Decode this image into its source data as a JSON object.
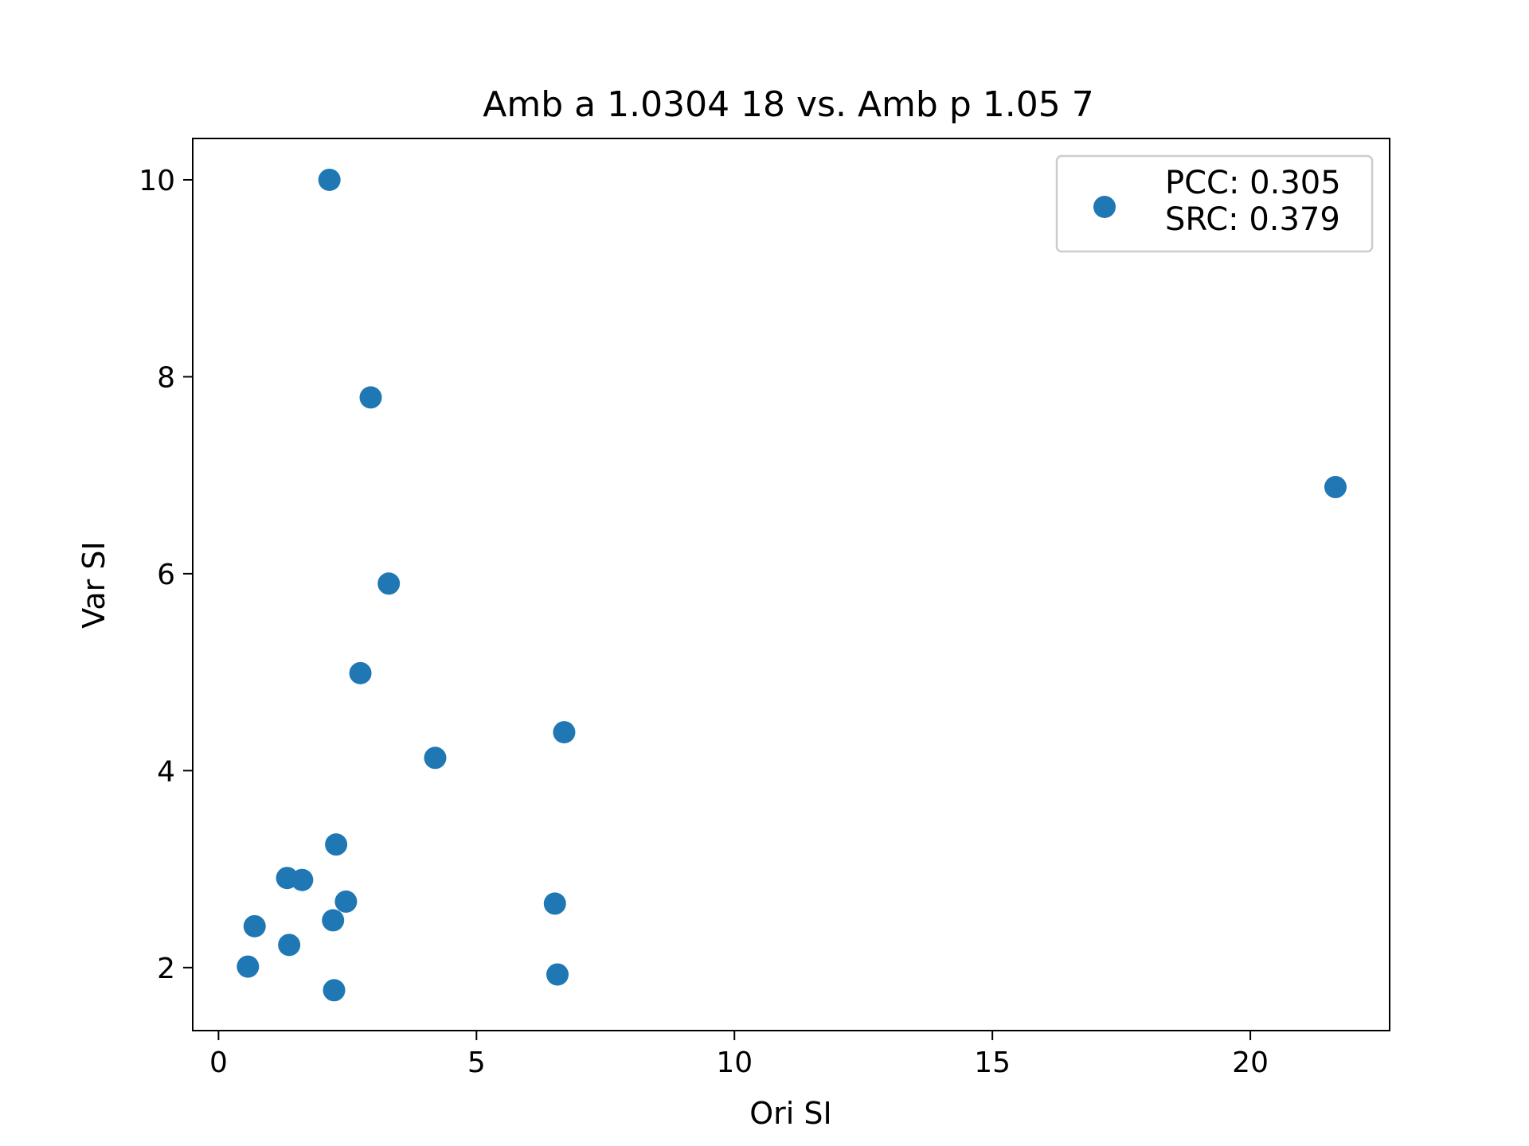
{
  "chart_data": {
    "type": "scatter",
    "title": "Amb a 1.0304 18 vs. Amb p 1.05 7",
    "xlabel": "Ori SI",
    "ylabel": "Var SI",
    "xlim": [
      -0.5,
      22.7
    ],
    "ylim": [
      1.36,
      10.42
    ],
    "xticks": [
      0,
      5,
      10,
      15,
      20
    ],
    "yticks": [
      2,
      4,
      6,
      8,
      10
    ],
    "grid": false,
    "legend_position": "top-right",
    "legend_lines": [
      "PCC: 0.305",
      "SRC: 0.379"
    ],
    "series": [
      {
        "color": "#1f77b4",
        "points": [
          {
            "x": 2.15,
            "y": 10.0
          },
          {
            "x": 2.95,
            "y": 7.79
          },
          {
            "x": 21.65,
            "y": 6.88
          },
          {
            "x": 3.3,
            "y": 5.9
          },
          {
            "x": 2.75,
            "y": 4.99
          },
          {
            "x": 6.7,
            "y": 4.39
          },
          {
            "x": 4.2,
            "y": 4.13
          },
          {
            "x": 2.28,
            "y": 3.25
          },
          {
            "x": 1.33,
            "y": 2.91
          },
          {
            "x": 1.62,
            "y": 2.89
          },
          {
            "x": 2.47,
            "y": 2.67
          },
          {
            "x": 6.52,
            "y": 2.65
          },
          {
            "x": 2.22,
            "y": 2.48
          },
          {
            "x": 0.7,
            "y": 2.42
          },
          {
            "x": 1.37,
            "y": 2.23
          },
          {
            "x": 0.57,
            "y": 2.01
          },
          {
            "x": 6.57,
            "y": 1.93
          },
          {
            "x": 2.24,
            "y": 1.77
          }
        ]
      }
    ]
  }
}
